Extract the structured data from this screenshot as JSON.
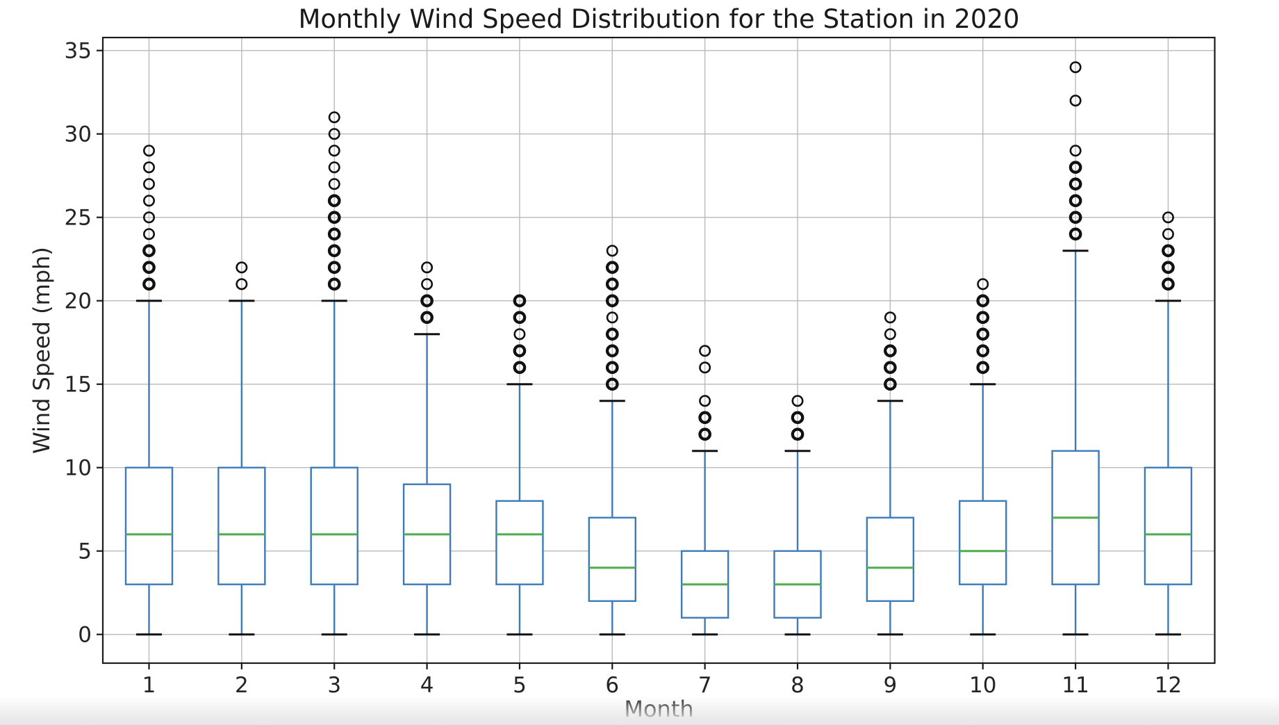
{
  "title": "Monthly Wind Speed Distribution for the Station in 2020",
  "colors": {
    "box": "#3c7bb8",
    "whisker": "#3c7bb8",
    "median": "#4ead4e",
    "cap": "#111111",
    "outlier": "#111111",
    "grid": "#bababa",
    "frame": "#1b1b1b",
    "tick": "#1b1b1b",
    "text": "#242424",
    "background": "#ffffff"
  },
  "chart_data": {
    "type": "boxplot",
    "title": "Monthly Wind Speed Distribution for the Station in 2020",
    "xlabel": "Month",
    "ylabel": "Wind Speed (mph)",
    "categories": [
      "1",
      "2",
      "3",
      "4",
      "5",
      "6",
      "7",
      "8",
      "9",
      "10",
      "11",
      "12"
    ],
    "y_ticks": [
      0,
      5,
      10,
      15,
      20,
      25,
      30,
      35
    ],
    "ylim": [
      -1.7,
      35.8
    ],
    "grid": true,
    "series": [
      {
        "month": 1,
        "whisker_low": 0,
        "q1": 3,
        "median": 6,
        "q3": 10,
        "whisker_high": 20,
        "outliers": [
          21,
          22,
          23,
          24,
          25,
          26,
          27,
          28,
          29
        ],
        "emphasized_outliers": [
          21,
          22,
          23
        ]
      },
      {
        "month": 2,
        "whisker_low": 0,
        "q1": 3,
        "median": 6,
        "q3": 10,
        "whisker_high": 20,
        "outliers": [
          21,
          22
        ],
        "emphasized_outliers": []
      },
      {
        "month": 3,
        "whisker_low": 0,
        "q1": 3,
        "median": 6,
        "q3": 10,
        "whisker_high": 20,
        "outliers": [
          21,
          22,
          23,
          24,
          25,
          26,
          27,
          28,
          29,
          30,
          31
        ],
        "emphasized_outliers": [
          21,
          22,
          23,
          24,
          25,
          26
        ]
      },
      {
        "month": 4,
        "whisker_low": 0,
        "q1": 3,
        "median": 6,
        "q3": 9,
        "whisker_high": 18,
        "outliers": [
          19,
          20,
          21,
          22
        ],
        "emphasized_outliers": [
          19,
          20
        ]
      },
      {
        "month": 5,
        "whisker_low": 0,
        "q1": 3,
        "median": 6,
        "q3": 8,
        "whisker_high": 15,
        "outliers": [
          16,
          17,
          18,
          19,
          20
        ],
        "emphasized_outliers": [
          16,
          17,
          19,
          20
        ]
      },
      {
        "month": 6,
        "whisker_low": 0,
        "q1": 2,
        "median": 4,
        "q3": 7,
        "whisker_high": 14,
        "outliers": [
          15,
          16,
          17,
          18,
          19,
          20,
          21,
          22,
          23
        ],
        "emphasized_outliers": [
          15,
          16,
          17,
          18,
          20,
          21,
          22
        ]
      },
      {
        "month": 7,
        "whisker_low": 0,
        "q1": 1,
        "median": 3,
        "q3": 5,
        "whisker_high": 11,
        "outliers": [
          12,
          13,
          14,
          16,
          17
        ],
        "emphasized_outliers": [
          12,
          13
        ]
      },
      {
        "month": 8,
        "whisker_low": 0,
        "q1": 1,
        "median": 3,
        "q3": 5,
        "whisker_high": 11,
        "outliers": [
          12,
          13,
          14
        ],
        "emphasized_outliers": [
          12,
          13
        ]
      },
      {
        "month": 9,
        "whisker_low": 0,
        "q1": 2,
        "median": 4,
        "q3": 7,
        "whisker_high": 14,
        "outliers": [
          15,
          16,
          17,
          18,
          19
        ],
        "emphasized_outliers": [
          15,
          16,
          17
        ]
      },
      {
        "month": 10,
        "whisker_low": 0,
        "q1": 3,
        "median": 5,
        "q3": 8,
        "whisker_high": 15,
        "outliers": [
          16,
          17,
          18,
          19,
          20,
          21
        ],
        "emphasized_outliers": [
          16,
          17,
          18,
          19,
          20
        ]
      },
      {
        "month": 11,
        "whisker_low": 0,
        "q1": 3,
        "median": 7,
        "q3": 11,
        "whisker_high": 23,
        "outliers": [
          24,
          25,
          26,
          27,
          28,
          29,
          32,
          34
        ],
        "emphasized_outliers": [
          24,
          25,
          26,
          27,
          28
        ]
      },
      {
        "month": 12,
        "whisker_low": 0,
        "q1": 3,
        "median": 6,
        "q3": 10,
        "whisker_high": 20,
        "outliers": [
          21,
          22,
          23,
          24,
          25
        ],
        "emphasized_outliers": [
          21,
          22,
          23
        ]
      }
    ]
  }
}
